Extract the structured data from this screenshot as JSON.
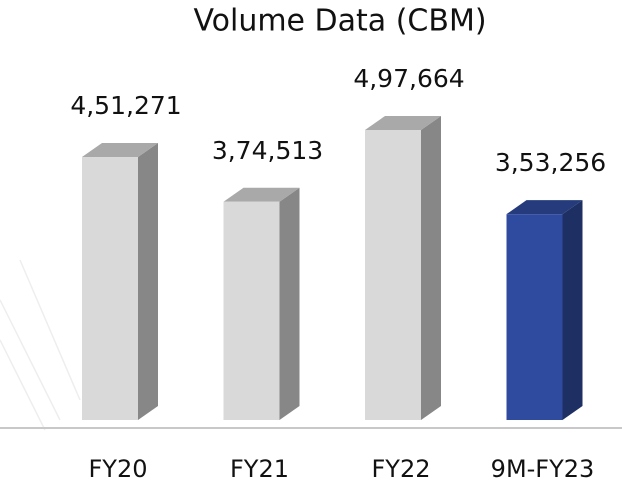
{
  "chart_data": {
    "type": "bar3d",
    "title": "Volume Data (CBM)",
    "categories": [
      "FY20",
      "FY21",
      "FY22",
      "9M-FY23"
    ],
    "values": [
      451271,
      374513,
      497664,
      353256
    ],
    "value_labels": [
      "4,51,271",
      "3,74,513",
      "4,97,664",
      "3,53,256"
    ],
    "colors": [
      "#d9d9d9",
      "#d9d9d9",
      "#d9d9d9",
      "#2f4b9f"
    ]
  }
}
